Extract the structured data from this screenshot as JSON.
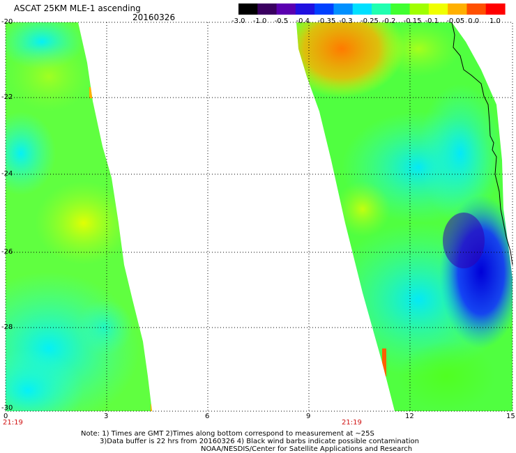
{
  "header": {
    "title": "ASCAT 25KM MLE-1 ascending",
    "date": "20160326"
  },
  "colorbar": {
    "labels": [
      "-3.0",
      "-1.0",
      "-0.5",
      "-0.4",
      "-0.35",
      "-0.3",
      "-0.25",
      "-0.2",
      "-0.15",
      "-0.1",
      "-0.05",
      "0.0",
      "1.0"
    ],
    "colors": [
      "#000000",
      "#3a0060",
      "#5a00b0",
      "#2010e0",
      "#0040ff",
      "#0090ff",
      "#00e0ff",
      "#20ffb0",
      "#40ff30",
      "#a0ff00",
      "#f0ff00",
      "#ffb000",
      "#ff5000",
      "#ff0000"
    ]
  },
  "map": {
    "y_labels": [
      "-20",
      "-22",
      "-24",
      "-26",
      "-28",
      "-30"
    ],
    "x_labels": [
      "0",
      "3",
      "6",
      "9",
      "12",
      "15"
    ],
    "time_labels": [
      "21:19",
      "21:19"
    ],
    "coast_color": "#000000"
  },
  "notes": {
    "line1": "Note: 1) Times are GMT 2)Times along bottom correspond to measurement at ~25S",
    "line2": "3)Data buffer is 22 hrs from 20160326 4) Black wind barbs indicate possible contamination",
    "line3": "NOAA/NESDIS/Center for Satellite Applications and Research"
  }
}
